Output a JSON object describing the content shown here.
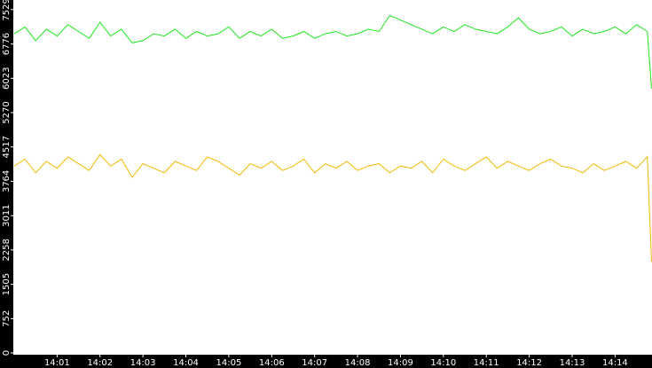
{
  "chart_data": {
    "type": "line",
    "x": [
      0,
      0.25,
      0.5,
      0.75,
      1,
      1.25,
      1.5,
      1.75,
      2,
      2.25,
      2.5,
      2.75,
      3,
      3.25,
      3.5,
      3.75,
      4,
      4.25,
      4.5,
      4.75,
      5,
      5.25,
      5.5,
      5.75,
      6,
      6.25,
      6.5,
      6.75,
      7,
      7.25,
      7.5,
      7.75,
      8,
      8.25,
      8.5,
      8.75,
      9,
      9.25,
      9.5,
      9.75,
      10,
      10.25,
      10.5,
      10.75,
      11,
      11.25,
      11.5,
      11.75,
      12,
      12.25,
      12.5,
      12.75,
      13,
      13.25,
      13.5,
      13.75,
      14,
      14.25,
      14.5,
      14.75,
      14.85
    ],
    "series": [
      {
        "color": "#1ee61e",
        "values": [
          7000,
          7150,
          6850,
          7100,
          6950,
          7200,
          7050,
          6900,
          7250,
          6950,
          7100,
          6800,
          6850,
          7000,
          6950,
          7100,
          6900,
          7050,
          6950,
          7000,
          7150,
          6900,
          7050,
          6950,
          7100,
          6900,
          6950,
          7050,
          6900,
          7000,
          7050,
          6950,
          7000,
          7100,
          7050,
          7400,
          7300,
          7200,
          7100,
          7000,
          7150,
          7050,
          7200,
          7100,
          7050,
          7000,
          7150,
          7350,
          7100,
          7000,
          7050,
          7150,
          6950,
          7100,
          7000,
          7050,
          7150,
          7000,
          7200,
          7050,
          5800
        ]
      },
      {
        "color": "#f2b800",
        "values": [
          4100,
          4250,
          3950,
          4200,
          4050,
          4300,
          4150,
          4000,
          4350,
          4100,
          4250,
          3850,
          4150,
          4050,
          3950,
          4200,
          4100,
          4000,
          4300,
          4200,
          4050,
          3900,
          4150,
          4050,
          4200,
          4000,
          4100,
          4250,
          3950,
          4150,
          4050,
          4200,
          4000,
          4100,
          4150,
          3950,
          4100,
          4050,
          4200,
          3950,
          4250,
          4100,
          4000,
          4150,
          4300,
          4050,
          4200,
          4100,
          4000,
          4150,
          4250,
          4100,
          4050,
          3950,
          4150,
          4000,
          4100,
          4200,
          4050,
          4300,
          2000
        ]
      }
    ],
    "xlim": [
      -0.02,
      14.86
    ],
    "xticks": [
      {
        "value": 1,
        "label": "14:01"
      },
      {
        "value": 2,
        "label": "14:02"
      },
      {
        "value": 3,
        "label": "14:03"
      },
      {
        "value": 4,
        "label": "14:04"
      },
      {
        "value": 5,
        "label": "14:05"
      },
      {
        "value": 6,
        "label": "14:06"
      },
      {
        "value": 7,
        "label": "14:07"
      },
      {
        "value": 8,
        "label": "14:08"
      },
      {
        "value": 9,
        "label": "14:09"
      },
      {
        "value": 10,
        "label": "14:10"
      },
      {
        "value": 11,
        "label": "14:11"
      },
      {
        "value": 12,
        "label": "14:12"
      },
      {
        "value": 13,
        "label": "14:13"
      },
      {
        "value": 14,
        "label": "14:14"
      }
    ],
    "ylim": [
      0,
      7740
    ],
    "yticks": [
      0,
      752,
      1505,
      2258,
      3011,
      3764,
      4517,
      5270,
      6023,
      6776,
      7529
    ]
  }
}
